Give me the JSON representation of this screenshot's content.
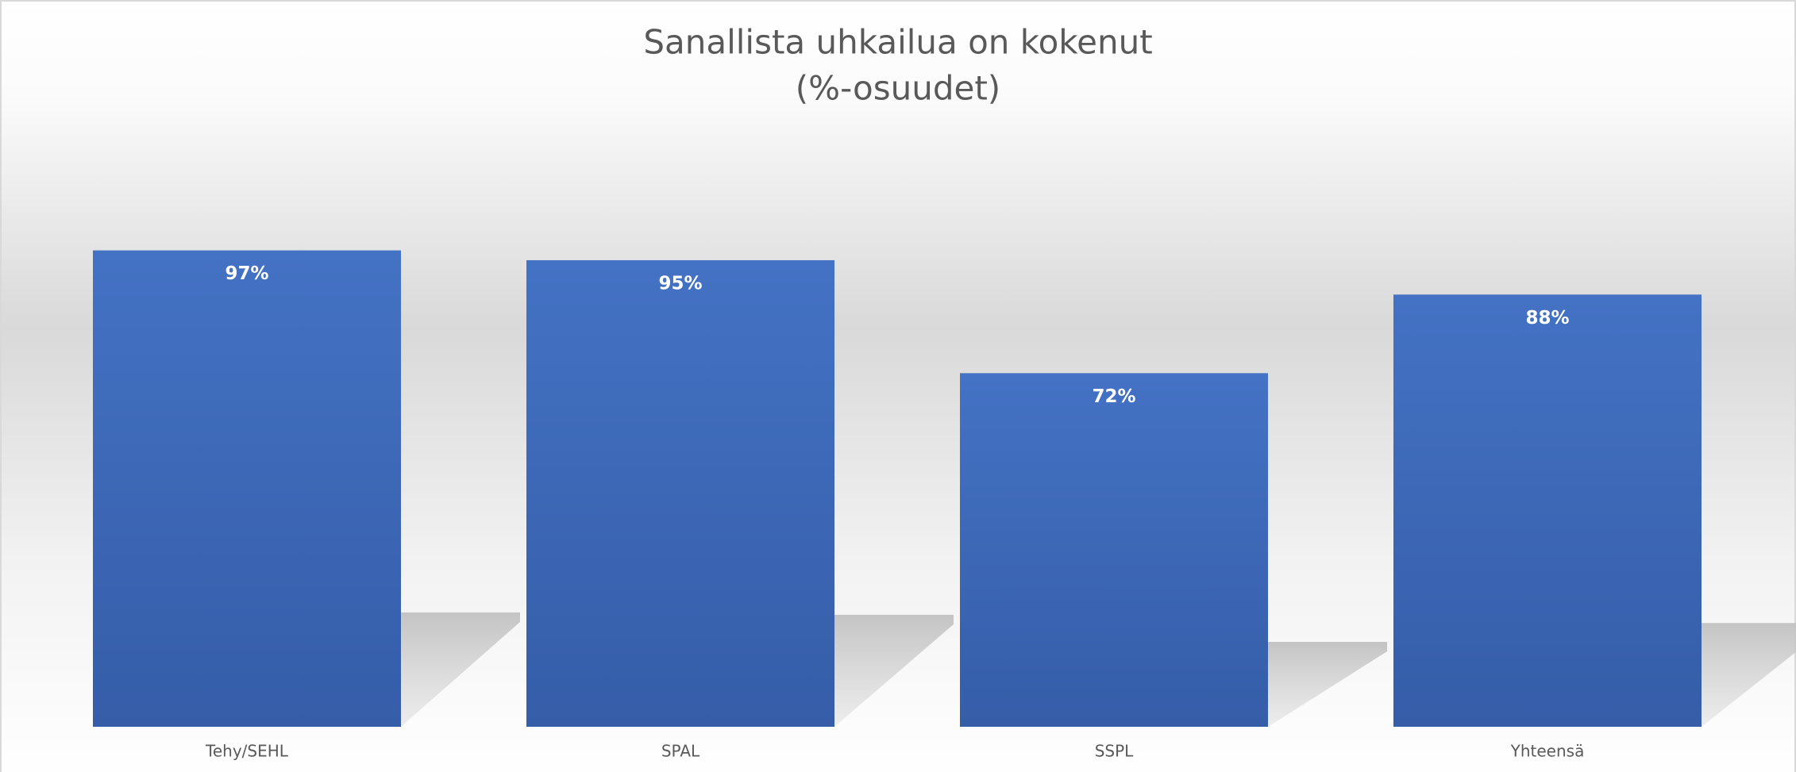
{
  "chart_data": {
    "type": "bar",
    "title": "Sanallista uhkailua on kokenut",
    "subtitle": "(%-osuudet)",
    "categories": [
      "Tehy/SEHL",
      "SPAL",
      "SSPL",
      "Yhteensä"
    ],
    "values": [
      97,
      95,
      72,
      88
    ],
    "value_labels": [
      "97%",
      "95%",
      "72%",
      "88%"
    ],
    "color": "#4472c4",
    "ylim": [
      0,
      100
    ]
  }
}
